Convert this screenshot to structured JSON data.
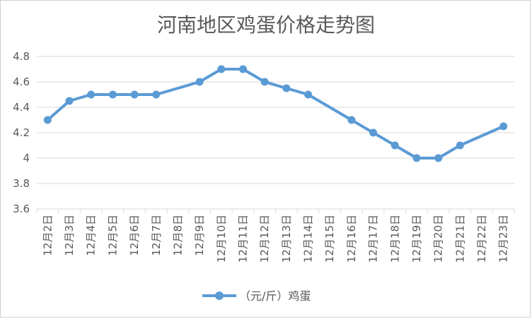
{
  "chart_data": {
    "type": "line",
    "title": "河南地区鸡蛋价格走势图",
    "categories": [
      "12月2日",
      "12月3日",
      "12月4日",
      "12月5日",
      "12月6日",
      "12月7日",
      "12月8日",
      "12月9日",
      "12月10日",
      "12月11日",
      "12月12日",
      "12月13日",
      "12月14日",
      "12月15日",
      "12月16日",
      "12月17日",
      "12月18日",
      "12月19日",
      "12月20日",
      "12月21日",
      "12月22日",
      "12月23日"
    ],
    "series": [
      {
        "name": "（元/斤）鸡蛋",
        "color": "#5b9bd5",
        "points": [
          {
            "x": "12月2日",
            "y": 4.3
          },
          {
            "x": "12月3日",
            "y": 4.45
          },
          {
            "x": "12月4日",
            "y": 4.5
          },
          {
            "x": "12月5日",
            "y": 4.5
          },
          {
            "x": "12月6日",
            "y": 4.5
          },
          {
            "x": "12月7日",
            "y": 4.5
          },
          {
            "x": "12月9日",
            "y": 4.6
          },
          {
            "x": "12月10日",
            "y": 4.7
          },
          {
            "x": "12月11日",
            "y": 4.7
          },
          {
            "x": "12月12日",
            "y": 4.6
          },
          {
            "x": "12月13日",
            "y": 4.55
          },
          {
            "x": "12月14日",
            "y": 4.5
          },
          {
            "x": "12月16日",
            "y": 4.3
          },
          {
            "x": "12月17日",
            "y": 4.2
          },
          {
            "x": "12月18日",
            "y": 4.1
          },
          {
            "x": "12月19日",
            "y": 4.0
          },
          {
            "x": "12月20日",
            "y": 4.0
          },
          {
            "x": "12月21日",
            "y": 4.1
          },
          {
            "x": "12月23日",
            "y": 4.25
          }
        ]
      }
    ],
    "ylim": [
      3.6,
      4.8
    ],
    "yticks": [
      "3.6",
      "3.8",
      "4",
      "4.2",
      "4.4",
      "4.6",
      "4.8"
    ],
    "grid": true,
    "legend": "bottom"
  }
}
